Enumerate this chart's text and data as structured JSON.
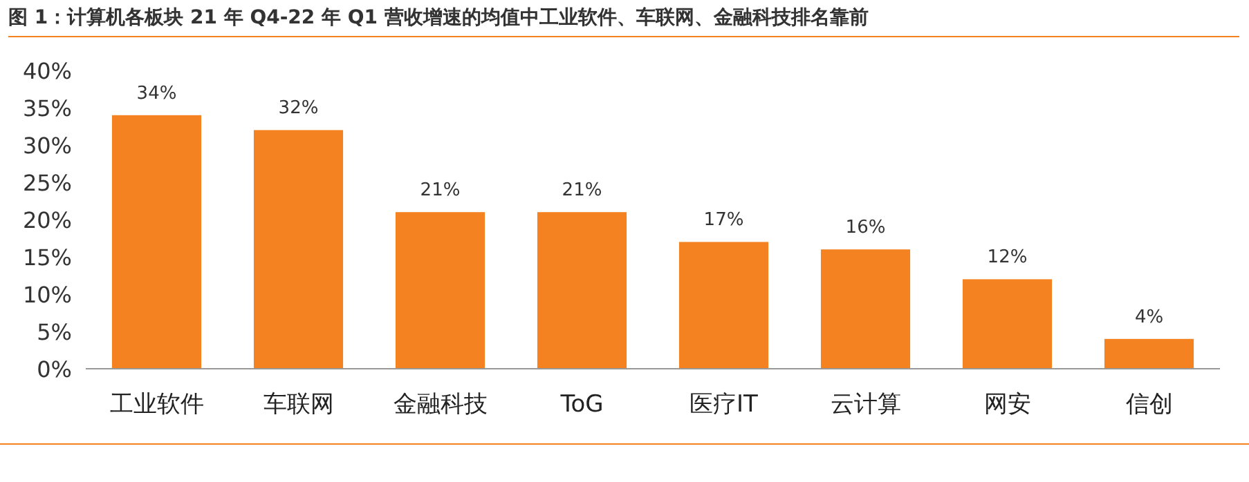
{
  "chart_data": {
    "type": "bar",
    "title": "图 1：计算机各板块 21 年 Q4-22 年 Q1 营收增速的均值中工业软件、车联网、金融科技排名靠前",
    "categories": [
      "工业软件",
      "车联网",
      "金融科技",
      "ToG",
      "医疗IT",
      "云计算",
      "网安",
      "信创"
    ],
    "values": [
      34,
      32,
      21,
      21,
      17,
      16,
      12,
      4
    ],
    "value_labels": [
      "34%",
      "32%",
      "21%",
      "21%",
      "17%",
      "16%",
      "12%",
      "4%"
    ],
    "color": "#f58220",
    "ylim": [
      0,
      40
    ],
    "yticks": [
      {
        "value": 0,
        "label": "0%"
      },
      {
        "value": 5,
        "label": "5%"
      },
      {
        "value": 10,
        "label": "10%"
      },
      {
        "value": 15,
        "label": "15%"
      },
      {
        "value": 20,
        "label": "20%"
      },
      {
        "value": 25,
        "label": "25%"
      },
      {
        "value": 30,
        "label": "30%"
      },
      {
        "value": 35,
        "label": "35%"
      },
      {
        "value": 40,
        "label": "40%"
      }
    ],
    "grid": false
  }
}
